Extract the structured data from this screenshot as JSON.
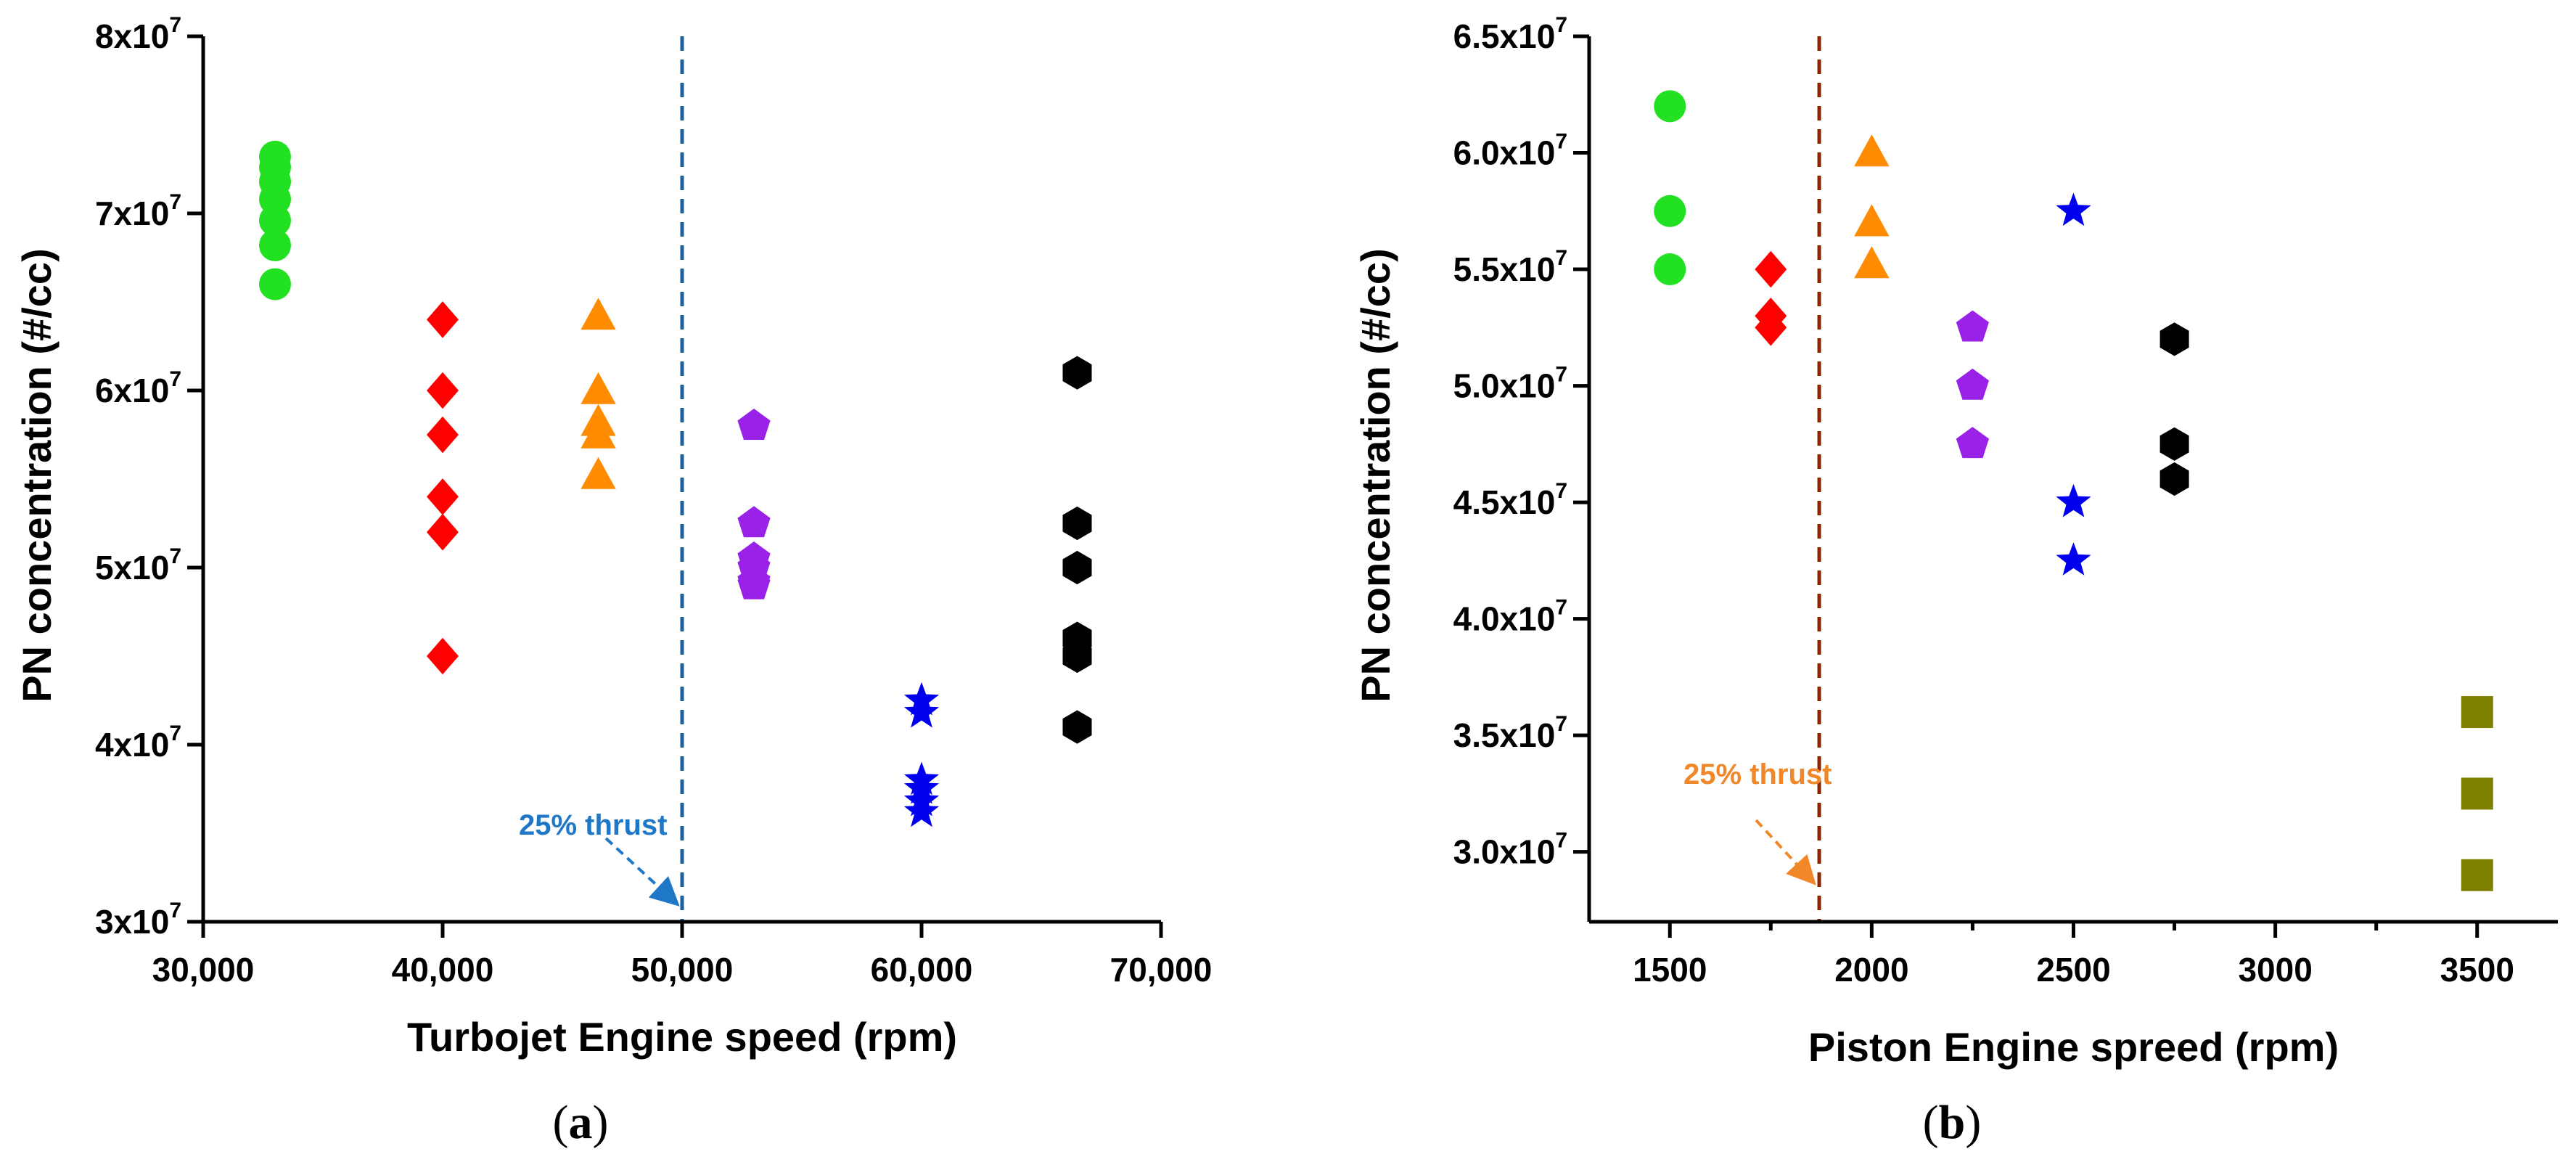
{
  "chart_data": [
    {
      "panel_label": "(a)",
      "type": "scatter",
      "xlabel": "Turbojet Engine speed (rpm)",
      "ylabel": "PN concentration (#/cc)",
      "xlim": [
        30000,
        70000
      ],
      "ylim": [
        30000000,
        80000000
      ],
      "x_ticks": [
        {
          "value": 30000,
          "label": "30,000"
        },
        {
          "value": 40000,
          "label": "40,000"
        },
        {
          "value": 50000,
          "label": "50,000"
        },
        {
          "value": 60000,
          "label": "60,000"
        },
        {
          "value": 70000,
          "label": "70,000"
        }
      ],
      "y_ticks": [
        {
          "value": 30000000,
          "mantissa": "3x10",
          "exp": "7"
        },
        {
          "value": 40000000,
          "mantissa": "4x10",
          "exp": "7"
        },
        {
          "value": 50000000,
          "mantissa": "5x10",
          "exp": "7"
        },
        {
          "value": 60000000,
          "mantissa": "6x10",
          "exp": "7"
        },
        {
          "value": 70000000,
          "mantissa": "7x10",
          "exp": "7"
        },
        {
          "value": 80000000,
          "mantissa": "8x10",
          "exp": "7"
        }
      ],
      "series": [
        {
          "marker": "circle",
          "color": "#22e022",
          "x": 33000,
          "y": [
            66000000,
            68200000,
            69600000,
            70800000,
            71800000,
            72600000,
            73200000
          ]
        },
        {
          "marker": "diamond",
          "color": "#ff0000",
          "x": 40000,
          "y": [
            64000000,
            60000000,
            57500000,
            54000000,
            52000000,
            45000000
          ]
        },
        {
          "marker": "triangle",
          "color": "#ff8c00",
          "x": 46500,
          "y": [
            64200000,
            60000000,
            58200000,
            57500000,
            55200000
          ]
        },
        {
          "marker": "pentagon",
          "color": "#9a22e8",
          "x": 53000,
          "y": [
            58000000,
            52500000,
            50500000,
            50000000,
            49200000,
            49000000
          ]
        },
        {
          "marker": "star",
          "color": "#0000ee",
          "x": 60000,
          "y": [
            42500000,
            41800000,
            38000000,
            37500000,
            36800000,
            36200000
          ]
        },
        {
          "marker": "hexagon",
          "color": "#000000",
          "x": 66500,
          "y": [
            61000000,
            52500000,
            50000000,
            46000000,
            45000000,
            41000000
          ]
        }
      ],
      "reference_line": {
        "x": 50000,
        "color": "#1f5f9e",
        "style": "dashed"
      },
      "annotation": {
        "text": "25% thrust",
        "color": "#1f77c8"
      }
    },
    {
      "panel_label": "(b)",
      "type": "scatter",
      "xlabel": "Piston Engine spreed (rpm)",
      "ylabel": "PN concentration (#/cc)",
      "xlim": [
        1300,
        3700
      ],
      "ylim": [
        27000000,
        65000000
      ],
      "x_ticks": [
        {
          "value": 1500,
          "label": "1500"
        },
        {
          "value": 2000,
          "label": "2000"
        },
        {
          "value": 2500,
          "label": "2500"
        },
        {
          "value": 3000,
          "label": "3000"
        },
        {
          "value": 3500,
          "label": "3500"
        }
      ],
      "y_ticks": [
        {
          "value": 30000000,
          "mantissa": "3.0x10",
          "exp": "7"
        },
        {
          "value": 35000000,
          "mantissa": "3.5x10",
          "exp": "7"
        },
        {
          "value": 40000000,
          "mantissa": "4.0x10",
          "exp": "7"
        },
        {
          "value": 45000000,
          "mantissa": "4.5x10",
          "exp": "7"
        },
        {
          "value": 50000000,
          "mantissa": "5.0x10",
          "exp": "7"
        },
        {
          "value": 55000000,
          "mantissa": "5.5x10",
          "exp": "7"
        },
        {
          "value": 60000000,
          "mantissa": "6.0x10",
          "exp": "7"
        },
        {
          "value": 65000000,
          "mantissa": "6.5x10",
          "exp": "7"
        }
      ],
      "series": [
        {
          "marker": "circle",
          "color": "#22e022",
          "x": 1500,
          "y": [
            62000000,
            57500000,
            55000000
          ]
        },
        {
          "marker": "diamond",
          "color": "#ff0000",
          "x": 1750,
          "y": [
            55000000,
            53000000,
            52500000
          ]
        },
        {
          "marker": "triangle",
          "color": "#ff8c00",
          "x": 2000,
          "y": [
            60000000,
            57000000,
            55200000
          ]
        },
        {
          "marker": "pentagon",
          "color": "#9a22e8",
          "x": 2250,
          "y": [
            52500000,
            50000000,
            47500000
          ]
        },
        {
          "marker": "star",
          "color": "#0000ee",
          "x": 2500,
          "y": [
            57500000,
            45000000,
            42500000
          ]
        },
        {
          "marker": "hexagon",
          "color": "#000000",
          "x": 2750,
          "y": [
            52000000,
            47500000,
            46000000
          ]
        },
        {
          "marker": "square",
          "color": "#808000",
          "x": 3500,
          "y": [
            36000000,
            32500000,
            29000000
          ]
        }
      ],
      "reference_line": {
        "x": 1870,
        "color": "#8b2500",
        "style": "dashed"
      },
      "annotation": {
        "text": "25% thrust",
        "color": "#f0882a"
      }
    }
  ]
}
